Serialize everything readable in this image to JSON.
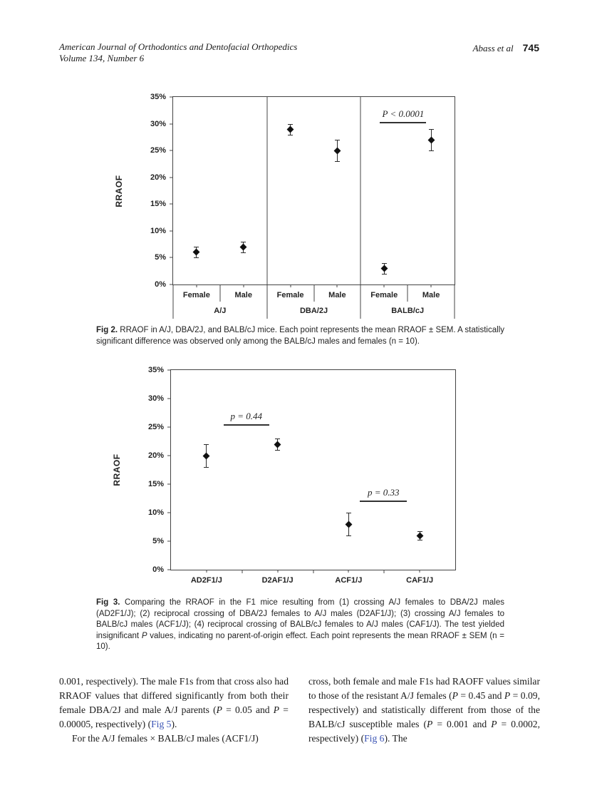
{
  "header": {
    "journal_line1": "American Journal of Orthodontics and Dentofacial Orthopedics",
    "journal_line2": "Volume 134, Number 6",
    "author": "Abass et al",
    "page_number": "745"
  },
  "colors": {
    "link_blue": "#3a53b4",
    "ink": "#1a1a1a",
    "chart_line": "#444444"
  },
  "chart_data": [
    {
      "id": "fig2",
      "type": "scatter",
      "title": "",
      "ylabel": "RRAOF",
      "ylim": [
        0,
        35
      ],
      "yticks": [
        "0%",
        "5%",
        "10%",
        "15%",
        "20%",
        "25%",
        "30%",
        "35%"
      ],
      "grid": false,
      "groups": [
        "A/J",
        "DBA/2J",
        "BALB/cJ"
      ],
      "series_labels": [
        "Female",
        "Male"
      ],
      "points": [
        {
          "group": "A/J",
          "sex": "Female",
          "mean": 6,
          "sem": 1,
          "x_pct": 8.33
        },
        {
          "group": "A/J",
          "sex": "Male",
          "mean": 7,
          "sem": 1,
          "x_pct": 25.0
        },
        {
          "group": "DBA/2J",
          "sex": "Female",
          "mean": 29,
          "sem": 1,
          "x_pct": 41.67
        },
        {
          "group": "DBA/2J",
          "sex": "Male",
          "mean": 25,
          "sem": 2,
          "x_pct": 58.33
        },
        {
          "group": "BALB/cJ",
          "sex": "Female",
          "mean": 3,
          "sem": 1,
          "x_pct": 75.0
        },
        {
          "group": "BALB/cJ",
          "sex": "Male",
          "mean": 27,
          "sem": 2,
          "x_pct": 91.67
        }
      ],
      "annotations": [
        {
          "text": "P < 0.0001",
          "x_pct": 73.5,
          "width_pct": 16.5,
          "y_value": 30.4
        }
      ]
    },
    {
      "id": "fig3",
      "type": "scatter",
      "title": "",
      "ylabel": "RRAOF",
      "ylim": [
        0,
        35
      ],
      "yticks": [
        "0%",
        "5%",
        "10%",
        "15%",
        "20%",
        "25%",
        "30%",
        "35%"
      ],
      "grid": false,
      "categories": [
        "AD2F1/J",
        "D2AF1/J",
        "ACF1/J",
        "CAF1/J"
      ],
      "points": [
        {
          "category": "AD2F1/J",
          "mean": 20,
          "sem": 2,
          "x_pct": 12.5
        },
        {
          "category": "D2AF1/J",
          "mean": 22,
          "sem": 1,
          "x_pct": 37.5
        },
        {
          "category": "ACF1/J",
          "mean": 8,
          "sem": 2,
          "x_pct": 62.5
        },
        {
          "category": "CAF1/J",
          "mean": 6,
          "sem": 0.8,
          "x_pct": 87.5
        }
      ],
      "annotations": [
        {
          "text": "p = 0.44",
          "x_pct": 18.5,
          "width_pct": 16.0,
          "y_value": 25.5
        },
        {
          "text": "p = 0.33",
          "x_pct": 66.5,
          "width_pct": 16.5,
          "y_value": 12.1
        }
      ]
    }
  ],
  "captions": {
    "fig2": [
      {
        "t": "Fig 2.",
        "s": "b"
      },
      {
        "t": " RRAOF in A/J, DBA/2J, and BALB/cJ mice. Each point represents the mean RRAOF ± SEM. A statistically significant difference was observed only among the BALB/cJ males and females (n = 10)."
      }
    ],
    "fig3": [
      {
        "t": "Fig 3.",
        "s": "b"
      },
      {
        "t": " Comparing the RRAOF in the F1 mice resulting from (1) crossing A/J females to DBA/2J males (AD2F1/J); (2) reciprocal crossing of DBA/2J females to A/J males (D2AF1/J); (3) crossing A/J females to BALB/cJ males (ACF1/J); (4) reciprocal crossing of BALB/cJ females to A/J males (CAF1/J). The test yielded insignificant "
      },
      {
        "t": "P",
        "s": "i"
      },
      {
        "t": " values, indicating no parent-of-origin effect. Each point represents the mean RRAOF ± SEM (n = 10)."
      }
    ]
  },
  "body": {
    "left_p1": [
      {
        "t": "0.001, respectively). The male F1s from that cross also had RRAOF values that differed significantly from both their female DBA/2J and male A/J parents ("
      },
      {
        "t": "P",
        "s": "i"
      },
      {
        "t": " = 0.05 and "
      },
      {
        "t": "P",
        "s": "i"
      },
      {
        "t": " = 0.00005, respectively) ("
      },
      {
        "t": "Fig 5",
        "s": "link",
        "name": "fig5-link"
      },
      {
        "t": ")."
      }
    ],
    "left_p2": [
      {
        "t": "For the A/J females × BALB/cJ males (ACF1/J)"
      }
    ],
    "right_p1": [
      {
        "t": "cross, both female and male F1s had RAOFF values similar to those of the resistant A/J females ("
      },
      {
        "t": "P",
        "s": "i"
      },
      {
        "t": " = 0.45 and "
      },
      {
        "t": "P",
        "s": "i"
      },
      {
        "t": " = 0.09, respectively) and statistically different from those of the BALB/cJ susceptible males ("
      },
      {
        "t": "P",
        "s": "i"
      },
      {
        "t": " = 0.001 and "
      },
      {
        "t": "P",
        "s": "i"
      },
      {
        "t": " = 0.0002, respectively) ("
      },
      {
        "t": "Fig 6",
        "s": "link",
        "name": "fig6-link"
      },
      {
        "t": "). The"
      }
    ]
  }
}
